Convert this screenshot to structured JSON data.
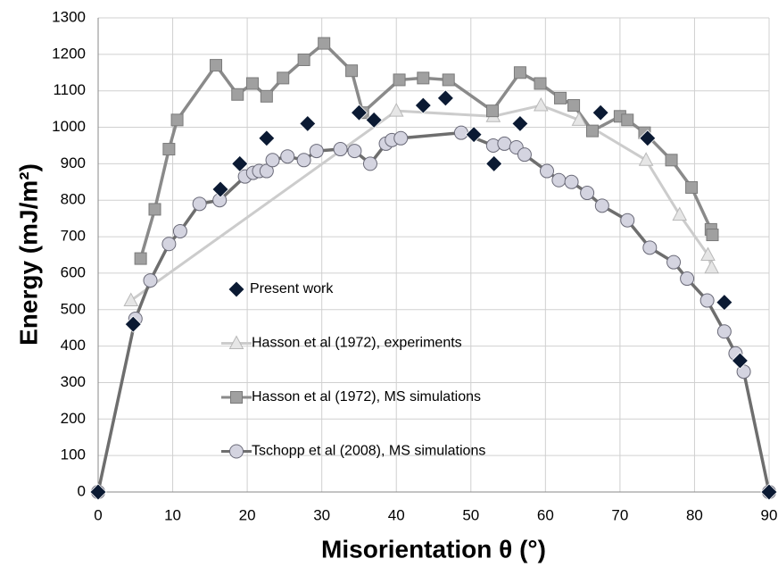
{
  "chart_data": {
    "type": "scatter",
    "xlabel": "Misorientation θ (°)",
    "ylabel": "Energy (mJ/m²)",
    "xlim": [
      0,
      90
    ],
    "xticks": [
      0,
      10,
      20,
      30,
      40,
      50,
      60,
      70,
      80,
      90
    ],
    "ylim": [
      0,
      1300
    ],
    "yticks": [
      0,
      100,
      200,
      300,
      400,
      500,
      600,
      700,
      800,
      900,
      1000,
      1100,
      1200,
      1300
    ],
    "grid": true,
    "series": [
      {
        "name": "Present work",
        "color": "#0b1a33",
        "marker": "diamond",
        "line": false,
        "x": [
          0,
          4.7,
          16.4,
          19,
          22.6,
          28.1,
          35,
          37,
          43.6,
          46.6,
          50.4,
          53.1,
          56.6,
          67.4,
          73.7,
          84,
          86.1,
          90
        ],
        "values": [
          0,
          460,
          830,
          900,
          970,
          1010,
          1040,
          1020,
          1060,
          1080,
          980,
          900,
          1010,
          1040,
          970,
          520,
          360,
          0
        ]
      },
      {
        "name": "Hasson et al (1972), experiments",
        "color": "#cccccc",
        "marker": "triangle",
        "line": true,
        "x": [
          4.4,
          40,
          53,
          59.4,
          64.5,
          73.5,
          78,
          81.8,
          82.3
        ],
        "values": [
          525,
          1045,
          1030,
          1060,
          1020,
          910,
          760,
          650,
          615
        ]
      },
      {
        "name": "Hasson et al (1972), MS simulations",
        "color": "#8a8a8a",
        "marker": "square",
        "line": true,
        "x": [
          5.7,
          7.6,
          9.5,
          10.6,
          15.8,
          18.7,
          20.7,
          22.6,
          24.8,
          27.6,
          30.3,
          34,
          35.5,
          40.4,
          43.6,
          47,
          52.9,
          56.6,
          59.3,
          62,
          63.8,
          66.3,
          70,
          71,
          73.3,
          76.9,
          79.6,
          82.2,
          82.4
        ],
        "values": [
          640,
          775,
          940,
          1020,
          1170,
          1090,
          1120,
          1085,
          1135,
          1185,
          1230,
          1155,
          1040,
          1130,
          1135,
          1130,
          1045,
          1150,
          1120,
          1080,
          1060,
          990,
          1030,
          1020,
          985,
          910,
          835,
          720,
          705
        ]
      },
      {
        "name": "Tschopp et al (2008), MS simulations",
        "color": "#6e6e6e",
        "marker": "circle",
        "line": true,
        "x": [
          0,
          5,
          7,
          9.5,
          11,
          13.6,
          16.3,
          19.7,
          20.8,
          21.6,
          22.6,
          23.4,
          25.4,
          27.6,
          29.3,
          32.5,
          34.4,
          36.5,
          38.6,
          39.4,
          40.6,
          48.7,
          53,
          54.5,
          56.1,
          57.2,
          60.2,
          61.8,
          63.5,
          65.6,
          67.6,
          71,
          74,
          77.2,
          79,
          81.7,
          84,
          85.5,
          86.6,
          90
        ],
        "values": [
          0,
          475,
          580,
          680,
          715,
          790,
          800,
          865,
          875,
          880,
          880,
          910,
          920,
          910,
          935,
          940,
          935,
          900,
          955,
          965,
          970,
          985,
          950,
          955,
          945,
          925,
          880,
          855,
          850,
          820,
          785,
          745,
          670,
          630,
          585,
          525,
          440,
          380,
          330,
          0
        ]
      }
    ]
  }
}
